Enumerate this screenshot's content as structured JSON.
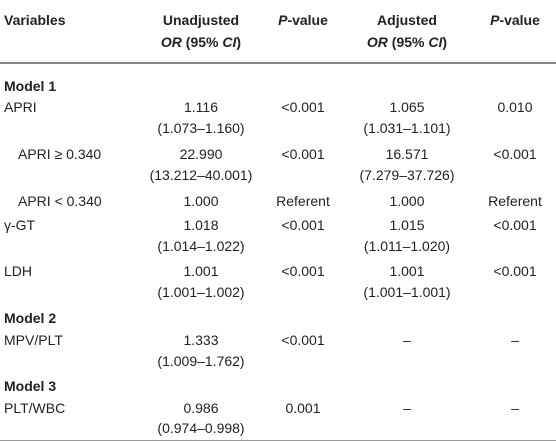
{
  "header": {
    "variables": "Variables",
    "unadjusted_line1": "Unadjusted",
    "unadjusted_or": "OR",
    "unadjusted_ci_open": " (95% ",
    "unadjusted_ci": "CI",
    "unadjusted_ci_close": ")",
    "pvalue1_p": "P",
    "pvalue1_rest": "-value",
    "adjusted_line1": "Adjusted",
    "adjusted_or": "OR",
    "adjusted_ci_open": " (95% ",
    "adjusted_ci": "CI",
    "adjusted_ci_close": ")",
    "pvalue2_p": "P",
    "pvalue2_rest": "-value"
  },
  "models": [
    {
      "title": "Model 1",
      "rows": [
        {
          "variable": "APRI",
          "indent": false,
          "un_or": "1.116",
          "un_ci": "(1.073–1.160)",
          "p1": "<0.001",
          "adj_or": "1.065",
          "adj_ci": "(1.031–1.101)",
          "p2": "0.010"
        },
        {
          "variable": "APRI ≥ 0.340",
          "indent": true,
          "un_or": "22.990",
          "un_ci": "(13.212–40.001)",
          "p1": "<0.001",
          "adj_or": "16.571",
          "adj_ci": "(7.279–37.726)",
          "p2": "<0.001"
        },
        {
          "variable": "APRI < 0.340",
          "indent": true,
          "un_or": "1.000",
          "un_ci": "",
          "p1": "Referent",
          "adj_or": "1.000",
          "adj_ci": "",
          "p2": "Referent"
        },
        {
          "variable": "γ-GT",
          "indent": false,
          "un_or": "1.018",
          "un_ci": "(1.014–1.022)",
          "p1": "<0.001",
          "adj_or": "1.015",
          "adj_ci": "(1.011–1.020)",
          "p2": "<0.001"
        },
        {
          "variable": "LDH",
          "indent": false,
          "un_or": "1.001",
          "un_ci": "(1.001–1.002)",
          "p1": "<0.001",
          "adj_or": "1.001",
          "adj_ci": "(1.001–1.001)",
          "p2": "<0.001"
        }
      ]
    },
    {
      "title": "Model 2",
      "rows": [
        {
          "variable": "MPV/PLT",
          "indent": false,
          "un_or": "1.333",
          "un_ci": "(1.009–1.762)",
          "p1": "<0.001",
          "adj_or": "–",
          "adj_ci": "",
          "p2": "–"
        }
      ]
    },
    {
      "title": "Model 3",
      "rows": [
        {
          "variable": "PLT/WBC",
          "indent": false,
          "un_or": "0.986",
          "un_ci": "(0.974–0.998)",
          "p1": "0.001",
          "adj_or": "–",
          "adj_ci": "",
          "p2": "–"
        }
      ]
    }
  ]
}
